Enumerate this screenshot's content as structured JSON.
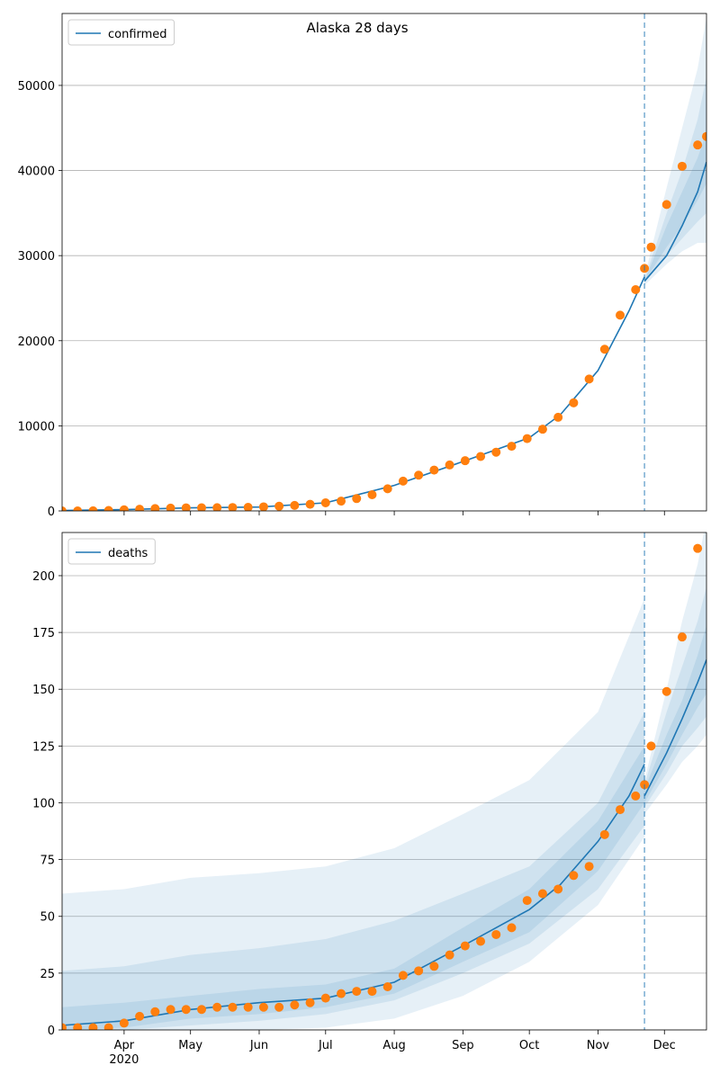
{
  "chart_data": [
    {
      "type": "line",
      "title": "Alaska 28 days",
      "x": [
        "2020-03-04",
        "2020-03-11",
        "2020-03-18",
        "2020-03-25",
        "2020-04-01",
        "2020-04-08",
        "2020-04-15",
        "2020-04-22",
        "2020-04-29",
        "2020-05-06",
        "2020-05-13",
        "2020-05-20",
        "2020-05-27",
        "2020-06-03",
        "2020-06-10",
        "2020-06-17",
        "2020-06-24",
        "2020-07-01",
        "2020-07-08",
        "2020-07-15",
        "2020-07-22",
        "2020-07-29",
        "2020-08-05",
        "2020-08-12",
        "2020-08-19",
        "2020-08-26",
        "2020-09-02",
        "2020-09-09",
        "2020-09-16",
        "2020-09-23",
        "2020-09-30",
        "2020-10-07",
        "2020-10-14",
        "2020-10-21",
        "2020-10-28",
        "2020-11-04",
        "2020-11-11",
        "2020-11-18",
        "2020-11-22",
        "2020-11-25",
        "2020-12-02",
        "2020-12-09",
        "2020-12-16",
        "2020-12-20"
      ],
      "xlim": [
        "2020-03-04",
        "2020-12-20"
      ],
      "ylim": [
        0,
        58450
      ],
      "yticks": [
        0,
        10000,
        20000,
        30000,
        40000,
        50000
      ],
      "grid": "y",
      "legend": "upper left",
      "vline": "2020-11-22",
      "series": [
        {
          "type": "band",
          "color": "#1f77b4",
          "x": [
            "2020-11-22",
            "2020-12-02",
            "2020-12-09",
            "2020-12-16",
            "2020-12-20"
          ],
          "lower": [
            26500,
            29000,
            30500,
            31500,
            31500
          ],
          "upper": [
            27500,
            38000,
            45000,
            52000,
            58000
          ]
        },
        {
          "type": "band",
          "color": "#1f77b4",
          "x": [
            "2020-11-22",
            "2020-12-02",
            "2020-12-09",
            "2020-12-16",
            "2020-12-20"
          ],
          "lower": [
            26800,
            30000,
            32000,
            34000,
            35000
          ],
          "upper": [
            27200,
            35000,
            40000,
            46000,
            51000
          ]
        },
        {
          "type": "band",
          "color": "#1f77b4",
          "x": [
            "2020-11-22",
            "2020-12-02",
            "2020-12-09",
            "2020-12-16",
            "2020-12-20"
          ],
          "lower": [
            27000,
            31000,
            33500,
            36500,
            38500
          ],
          "upper": [
            27000,
            33500,
            37500,
            41500,
            44500
          ]
        },
        {
          "type": "line",
          "name": "confirmed",
          "color": "#1f77b4",
          "x": [
            "2020-03-04",
            "2020-04-01",
            "2020-05-01",
            "2020-06-01",
            "2020-07-01",
            "2020-08-01",
            "2020-09-01",
            "2020-10-01",
            "2020-10-15",
            "2020-11-01",
            "2020-11-15",
            "2020-11-22"
          ],
          "values": [
            50,
            150,
            360,
            460,
            950,
            3000,
            5800,
            8600,
            11300,
            16500,
            23500,
            27500
          ]
        },
        {
          "type": "line",
          "color": "#1f77b4",
          "x": [
            "2020-11-22",
            "2020-12-02",
            "2020-12-09",
            "2020-12-16",
            "2020-12-20"
          ],
          "values": [
            27000,
            30000,
            33500,
            37500,
            41000
          ]
        },
        {
          "type": "scatter",
          "color": "#ff7f0e",
          "values": [
            0,
            0,
            10,
            50,
            130,
            200,
            280,
            330,
            360,
            370,
            380,
            400,
            420,
            480,
            550,
            650,
            780,
            950,
            1150,
            1450,
            1900,
            2600,
            3500,
            4200,
            4800,
            5400,
            5900,
            6400,
            6900,
            7600,
            8500,
            9600,
            11000,
            12700,
            15500,
            19000,
            23000,
            26000,
            28500,
            31000,
            36000,
            40500,
            43000,
            44000
          ]
        }
      ]
    },
    {
      "type": "line",
      "x": [
        "2020-03-04",
        "2020-03-11",
        "2020-03-18",
        "2020-03-25",
        "2020-04-01",
        "2020-04-08",
        "2020-04-15",
        "2020-04-22",
        "2020-04-29",
        "2020-05-06",
        "2020-05-13",
        "2020-05-20",
        "2020-05-27",
        "2020-06-03",
        "2020-06-10",
        "2020-06-17",
        "2020-06-24",
        "2020-07-01",
        "2020-07-08",
        "2020-07-15",
        "2020-07-22",
        "2020-07-29",
        "2020-08-05",
        "2020-08-12",
        "2020-08-19",
        "2020-08-26",
        "2020-09-02",
        "2020-09-09",
        "2020-09-16",
        "2020-09-23",
        "2020-09-30",
        "2020-10-07",
        "2020-10-14",
        "2020-10-21",
        "2020-10-28",
        "2020-11-04",
        "2020-11-11",
        "2020-11-18",
        "2020-11-22",
        "2020-11-25",
        "2020-12-02",
        "2020-12-09",
        "2020-12-16",
        "2020-12-20"
      ],
      "xlim": [
        "2020-03-04",
        "2020-12-20"
      ],
      "ylim": [
        0,
        219
      ],
      "xticks": [
        {
          "value": "2020-04-01",
          "label": "Apr",
          "sublabel": "2020"
        },
        {
          "value": "2020-05-01",
          "label": "May"
        },
        {
          "value": "2020-06-01",
          "label": "Jun"
        },
        {
          "value": "2020-07-01",
          "label": "Jul"
        },
        {
          "value": "2020-08-01",
          "label": "Aug"
        },
        {
          "value": "2020-09-01",
          "label": "Sep"
        },
        {
          "value": "2020-10-01",
          "label": "Oct"
        },
        {
          "value": "2020-11-01",
          "label": "Nov"
        },
        {
          "value": "2020-12-01",
          "label": "Dec"
        }
      ],
      "yticks": [
        0,
        25,
        50,
        75,
        100,
        125,
        150,
        175,
        200
      ],
      "grid": "y",
      "legend": "upper left",
      "vline": "2020-11-22",
      "series": [
        {
          "type": "band",
          "color": "#1f77b4",
          "x": [
            "2020-03-04",
            "2020-04-01",
            "2020-05-01",
            "2020-06-01",
            "2020-07-01",
            "2020-08-01",
            "2020-09-01",
            "2020-10-01",
            "2020-11-01",
            "2020-11-22"
          ],
          "lower": [
            0,
            0,
            0,
            0,
            1,
            5,
            15,
            30,
            55,
            85
          ],
          "upper": [
            60,
            62,
            67,
            69,
            72,
            80,
            95,
            110,
            140,
            190
          ]
        },
        {
          "type": "band",
          "color": "#1f77b4",
          "x": [
            "2020-03-04",
            "2020-04-01",
            "2020-05-01",
            "2020-06-01",
            "2020-07-01",
            "2020-08-01",
            "2020-09-01",
            "2020-10-01",
            "2020-11-01",
            "2020-11-22"
          ],
          "lower": [
            0,
            0,
            2,
            4,
            7,
            13,
            25,
            38,
            62,
            90
          ],
          "upper": [
            26,
            28,
            33,
            36,
            40,
            48,
            60,
            72,
            100,
            140
          ]
        },
        {
          "type": "band",
          "color": "#1f77b4",
          "x": [
            "2020-03-04",
            "2020-04-01",
            "2020-05-01",
            "2020-06-01",
            "2020-07-01",
            "2020-08-01",
            "2020-09-01",
            "2020-10-01",
            "2020-11-01",
            "2020-11-22"
          ],
          "lower": [
            0,
            1,
            5,
            7,
            10,
            16,
            30,
            43,
            70,
            100
          ],
          "upper": [
            10,
            12,
            15,
            18,
            20,
            27,
            45,
            62,
            92,
            125
          ]
        },
        {
          "type": "band",
          "color": "#1f77b4",
          "x": [
            "2020-11-22",
            "2020-12-02",
            "2020-12-09",
            "2020-12-16",
            "2020-12-20"
          ],
          "lower": [
            95,
            108,
            118,
            125,
            130
          ],
          "upper": [
            110,
            150,
            180,
            205,
            225
          ]
        },
        {
          "type": "band",
          "color": "#1f77b4",
          "x": [
            "2020-11-22",
            "2020-12-02",
            "2020-12-09",
            "2020-12-16",
            "2020-12-20"
          ],
          "lower": [
            98,
            113,
            125,
            133,
            138
          ],
          "upper": [
            108,
            140,
            160,
            180,
            195
          ]
        },
        {
          "type": "band",
          "color": "#1f77b4",
          "x": [
            "2020-11-22",
            "2020-12-02",
            "2020-12-09",
            "2020-12-16",
            "2020-12-20"
          ],
          "lower": [
            100,
            117,
            130,
            142,
            148
          ],
          "upper": [
            106,
            130,
            145,
            165,
            178
          ]
        },
        {
          "type": "line",
          "name": "deaths",
          "color": "#1f77b4",
          "x": [
            "2020-03-04",
            "2020-04-01",
            "2020-05-01",
            "2020-06-01",
            "2020-07-01",
            "2020-08-01",
            "2020-09-01",
            "2020-10-01",
            "2020-10-15",
            "2020-11-01",
            "2020-11-15",
            "2020-11-22"
          ],
          "values": [
            2,
            4,
            9,
            12,
            14,
            21,
            37,
            53,
            64,
            83,
            103,
            117
          ]
        },
        {
          "type": "line",
          "color": "#1f77b4",
          "x": [
            "2020-11-22",
            "2020-12-02",
            "2020-12-09",
            "2020-12-16",
            "2020-12-20"
          ],
          "values": [
            103,
            122,
            137,
            153,
            163
          ]
        },
        {
          "type": "scatter",
          "color": "#ff7f0e",
          "values": [
            1,
            1,
            1,
            1,
            3,
            6,
            8,
            9,
            9,
            9,
            10,
            10,
            10,
            10,
            10,
            11,
            12,
            14,
            16,
            17,
            17,
            19,
            24,
            26,
            28,
            33,
            37,
            39,
            42,
            45,
            57,
            60,
            62,
            68,
            72,
            86,
            97,
            103,
            108,
            125,
            149,
            173,
            212,
            null
          ]
        }
      ]
    }
  ]
}
